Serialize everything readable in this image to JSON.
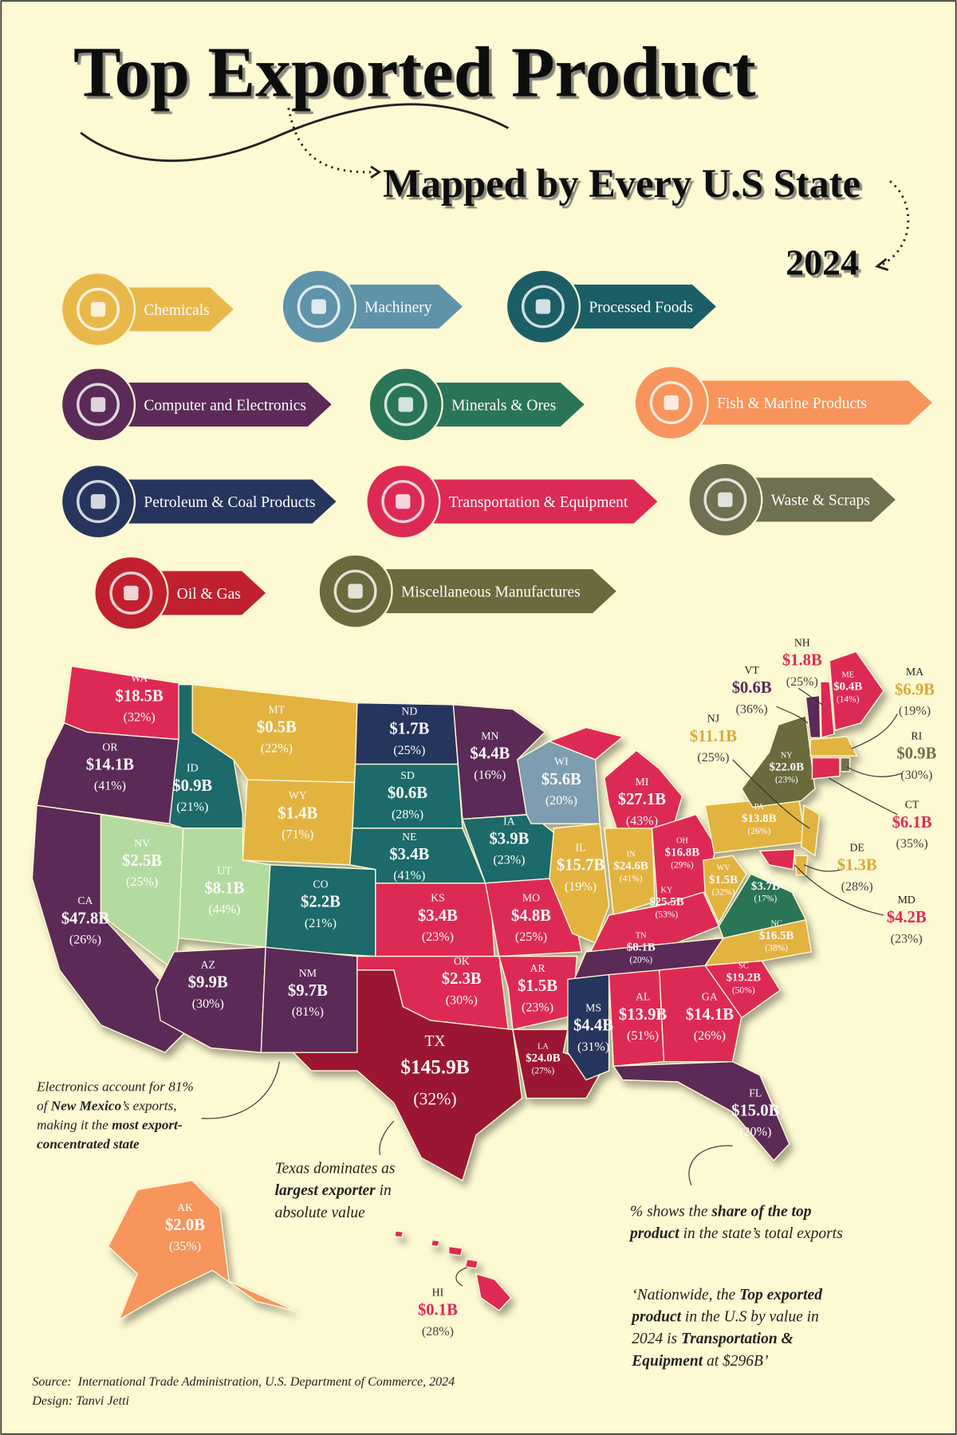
{
  "title": "Top Exported Product",
  "subtitle": "Mapped by Every U.S State",
  "year": "2024",
  "legend": [
    {
      "name": "Chemicals",
      "color": "#e8b94a"
    },
    {
      "name": "Machinery",
      "color": "#5e93aa"
    },
    {
      "name": "Processed Foods",
      "color": "#1c5e66"
    },
    {
      "name": "Computer and Electronics",
      "color": "#5c2a57"
    },
    {
      "name": "Minerals & Ores",
      "color": "#2a7557"
    },
    {
      "name": "Fish & Marine Products",
      "color": "#f7955c"
    },
    {
      "name": "Petroleum & Coal Products",
      "color": "#25355d"
    },
    {
      "name": "Transportation & Equipment",
      "color": "#dd2a55"
    },
    {
      "name": "Waste & Scraps",
      "color": "#6f6f52"
    },
    {
      "name": "Oil & Gas",
      "color": "#c0202e"
    },
    {
      "name": "Miscellaneous Manufactures",
      "color": "#6b6a3c"
    }
  ],
  "states": [
    {
      "abbr": "WA",
      "value": "$18.5B",
      "share": "(32%)",
      "color": "#dd2a55"
    },
    {
      "abbr": "OR",
      "value": "$14.1B",
      "share": "(41%)",
      "color": "#5c2a57"
    },
    {
      "abbr": "CA",
      "value": "$47.8B",
      "share": "(26%)",
      "color": "#5c2a57"
    },
    {
      "abbr": "NV",
      "value": "$2.5B",
      "share": "(25%)",
      "color": "#b3dba0"
    },
    {
      "abbr": "ID",
      "value": "$0.9B",
      "share": "(21%)",
      "color": "#1c6b6b"
    },
    {
      "abbr": "MT",
      "value": "$0.5B",
      "share": "(22%)",
      "color": "#e3b33f"
    },
    {
      "abbr": "WY",
      "value": "$1.4B",
      "share": "(71%)",
      "color": "#e3b33f"
    },
    {
      "abbr": "UT",
      "value": "$8.1B",
      "share": "(44%)",
      "color": "#b3dba0"
    },
    {
      "abbr": "CO",
      "value": "$2.2B",
      "share": "(21%)",
      "color": "#1c6b6b"
    },
    {
      "abbr": "AZ",
      "value": "$9.9B",
      "share": "(30%)",
      "color": "#5c2a57"
    },
    {
      "abbr": "NM",
      "value": "$9.7B",
      "share": "(81%)",
      "color": "#5c2a57"
    },
    {
      "abbr": "ND",
      "value": "$1.7B",
      "share": "(25%)",
      "color": "#25355d"
    },
    {
      "abbr": "SD",
      "value": "$0.6B",
      "share": "(28%)",
      "color": "#1c6b6b"
    },
    {
      "abbr": "NE",
      "value": "$3.4B",
      "share": "(41%)",
      "color": "#1c6b6b"
    },
    {
      "abbr": "KS",
      "value": "$3.4B",
      "share": "(23%)",
      "color": "#dd2a55"
    },
    {
      "abbr": "OK",
      "value": "$2.3B",
      "share": "(30%)",
      "color": "#dd2a55"
    },
    {
      "abbr": "TX",
      "value": "$145.9B",
      "share": "(32%)",
      "color": "#9b1230"
    },
    {
      "abbr": "MN",
      "value": "$4.4B",
      "share": "(16%)",
      "color": "#5c2a57"
    },
    {
      "abbr": "IA",
      "value": "$3.9B",
      "share": "(23%)",
      "color": "#1c6b6b"
    },
    {
      "abbr": "MO",
      "value": "$4.8B",
      "share": "(25%)",
      "color": "#dd2a55"
    },
    {
      "abbr": "AR",
      "value": "$1.5B",
      "share": "(23%)",
      "color": "#dd2a55"
    },
    {
      "abbr": "LA",
      "value": "$24.0B",
      "share": "(27%)",
      "color": "#9b1230"
    },
    {
      "abbr": "WI",
      "value": "$5.6B",
      "share": "(20%)",
      "color": "#7f9db0"
    },
    {
      "abbr": "IL",
      "value": "$15.7B",
      "share": "(19%)",
      "color": "#e3b33f"
    },
    {
      "abbr": "MI",
      "value": "$27.1B",
      "share": "(43%)",
      "color": "#dd2a55"
    },
    {
      "abbr": "IN",
      "value": "$24.6B",
      "share": "(41%)",
      "color": "#e3b33f"
    },
    {
      "abbr": "OH",
      "value": "$16.8B",
      "share": "(29%)",
      "color": "#dd2a55"
    },
    {
      "abbr": "KY",
      "value": "$25.5B",
      "share": "(53%)",
      "color": "#dd2a55"
    },
    {
      "abbr": "TN",
      "value": "$8.1B",
      "share": "(20%)",
      "color": "#5c2a57"
    },
    {
      "abbr": "MS",
      "value": "$4.4B",
      "share": "(31%)",
      "color": "#25355d"
    },
    {
      "abbr": "AL",
      "value": "$13.9B",
      "share": "(51%)",
      "color": "#dd2a55"
    },
    {
      "abbr": "GA",
      "value": "$14.1B",
      "share": "(26%)",
      "color": "#dd2a55"
    },
    {
      "abbr": "FL",
      "value": "$15.0B",
      "share": "(20%)",
      "color": "#5c2a57"
    },
    {
      "abbr": "SC",
      "value": "$19.2B",
      "share": "(50%)",
      "color": "#dd2a55"
    },
    {
      "abbr": "NC",
      "value": "$16.5B",
      "share": "(38%)",
      "color": "#e3b33f"
    },
    {
      "abbr": "VA",
      "value": "$3.7B",
      "share": "(17%)",
      "color": "#2a7557"
    },
    {
      "abbr": "WV",
      "value": "$1.5B",
      "share": "(32%)",
      "color": "#e3b33f"
    },
    {
      "abbr": "PA",
      "value": "$13.8B",
      "share": "(26%)",
      "color": "#e3b33f"
    },
    {
      "abbr": "NY",
      "value": "$22.0B",
      "share": "(23%)",
      "color": "#6b6a3c"
    },
    {
      "abbr": "VT",
      "value": "$0.6B",
      "share": "(36%)",
      "color": "#5c2a57"
    },
    {
      "abbr": "NH",
      "value": "$1.8B",
      "share": "(25%)",
      "color": "#dd2a55"
    },
    {
      "abbr": "ME",
      "value": "$0.4B",
      "share": "(14%)",
      "color": "#dd2a55"
    },
    {
      "abbr": "MA",
      "value": "$6.9B",
      "share": "(19%)",
      "color": "#e3b33f"
    },
    {
      "abbr": "RI",
      "value": "$0.9B",
      "share": "(30%)",
      "color": "#6f6f52"
    },
    {
      "abbr": "CT",
      "value": "$6.1B",
      "share": "(35%)",
      "color": "#dd2a55"
    },
    {
      "abbr": "NJ",
      "value": "$11.1B",
      "share": "(25%)",
      "color": "#e3b33f"
    },
    {
      "abbr": "DE",
      "value": "$1.3B",
      "share": "(28%)",
      "color": "#e3b33f"
    },
    {
      "abbr": "MD",
      "value": "$4.2B",
      "share": "(23%)",
      "color": "#dd2a55"
    },
    {
      "abbr": "AK",
      "value": "$2.0B",
      "share": "(35%)",
      "color": "#f7955c"
    },
    {
      "abbr": "HI",
      "value": "$0.1B",
      "share": "(28%)",
      "color": "#dd2a55"
    }
  ],
  "annotations": [
    {
      "lines": [
        [
          {
            "text": "Electronics account for 81%"
          }
        ],
        [
          {
            "text": "of "
          },
          {
            "text": "New Mexico",
            "bold": true
          },
          {
            "text": "’s exports,"
          }
        ],
        [
          {
            "text": "making it the "
          },
          {
            "text": "most export-",
            "bold": true
          }
        ],
        [
          {
            "text": "concentrated state",
            "bold": true
          }
        ]
      ]
    },
    {
      "lines": [
        [
          {
            "text": "Texas dominates as"
          }
        ],
        [
          {
            "text": "largest exporter",
            "bold": true
          },
          {
            "text": " in"
          }
        ],
        [
          {
            "text": "absolute value"
          }
        ]
      ]
    },
    {
      "lines": [
        [
          {
            "text": "% shows the "
          },
          {
            "text": "share of the top",
            "bold": true
          }
        ],
        [
          {
            "text": "product",
            "bold": true
          },
          {
            "text": " in the state’s total exports"
          }
        ]
      ]
    },
    {
      "lines": [
        [
          {
            "text": "‘Nationwide, the "
          },
          {
            "text": "Top exported",
            "bold": true
          }
        ],
        [
          {
            "text": "product",
            "bold": true
          },
          {
            "text": " in the U.S by value in"
          }
        ],
        [
          {
            "text": "2024 is "
          },
          {
            "text": "Transportation &",
            "bold": true
          }
        ],
        [
          {
            "text": "Equipment",
            "bold": true
          },
          {
            "text": " at $296B’"
          }
        ]
      ]
    }
  ],
  "source": "Source:  International Trade Administration, U.S. Department of Commerce, 2024",
  "design": "Design: Tanvi Jetti"
}
